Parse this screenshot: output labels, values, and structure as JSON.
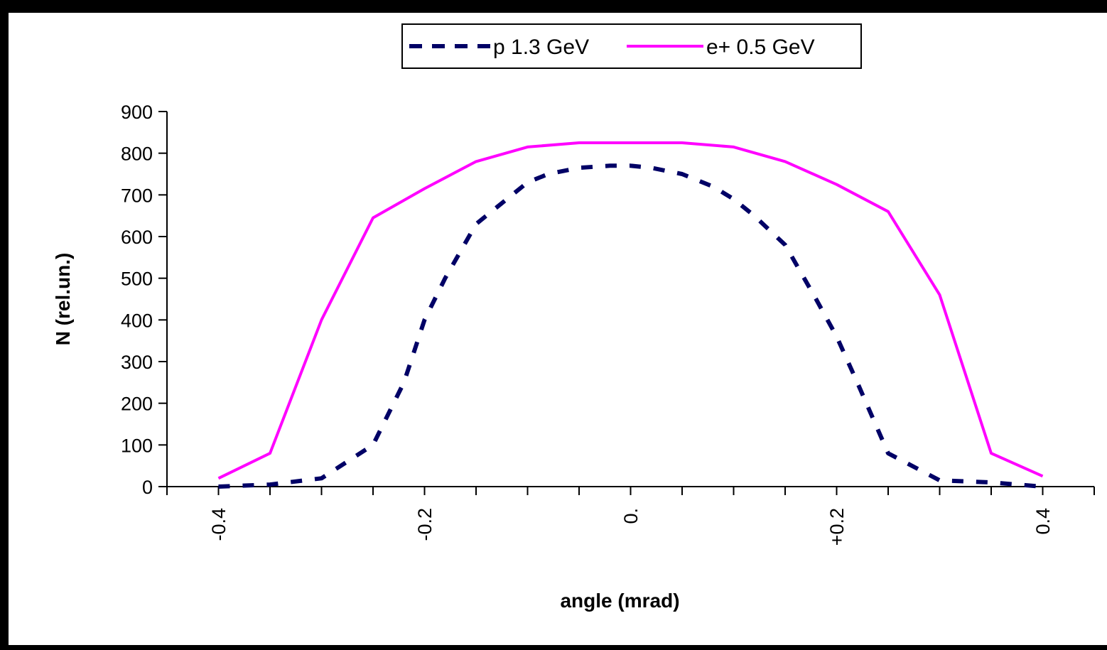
{
  "chart_data": {
    "type": "line",
    "xlabel": "angle (mrad)",
    "ylabel": "N (rel.un.)",
    "xlim": [
      -0.45,
      0.45
    ],
    "ylim": [
      0,
      900
    ],
    "yticks": [
      0,
      100,
      200,
      300,
      400,
      500,
      600,
      700,
      800,
      900
    ],
    "xtick_labels": [
      {
        "value": -0.4,
        "label": "-0.4"
      },
      {
        "value": -0.2,
        "label": "-0.2"
      },
      {
        "value": 0.0,
        "label": "0."
      },
      {
        "value": 0.2,
        "label": "+0.2"
      },
      {
        "value": 0.4,
        "label": "0.4"
      }
    ],
    "grid": false,
    "legend_position": "top-center",
    "series": [
      {
        "name": "p 1.3 GeV",
        "color": "#000066",
        "style": "dashed",
        "x": [
          -0.4,
          -0.35,
          -0.3,
          -0.25,
          -0.22,
          -0.2,
          -0.18,
          -0.15,
          -0.12,
          -0.1,
          -0.08,
          -0.05,
          -0.02,
          0.0,
          0.02,
          0.05,
          0.08,
          0.1,
          0.12,
          0.15,
          0.18,
          0.2,
          0.22,
          0.25,
          0.3,
          0.35,
          0.4
        ],
        "y": [
          0,
          5,
          20,
          100,
          250,
          400,
          500,
          630,
          690,
          730,
          750,
          765,
          770,
          770,
          765,
          750,
          720,
          690,
          650,
          580,
          450,
          360,
          250,
          80,
          15,
          10,
          0
        ]
      },
      {
        "name": "e+ 0.5 GeV",
        "color": "#FF00FF",
        "style": "solid",
        "x": [
          -0.4,
          -0.35,
          -0.3,
          -0.25,
          -0.2,
          -0.15,
          -0.1,
          -0.05,
          0.0,
          0.05,
          0.1,
          0.15,
          0.2,
          0.25,
          0.3,
          0.35,
          0.4
        ],
        "y": [
          20,
          80,
          400,
          645,
          715,
          780,
          815,
          825,
          825,
          825,
          815,
          780,
          725,
          660,
          460,
          80,
          25
        ]
      }
    ]
  }
}
